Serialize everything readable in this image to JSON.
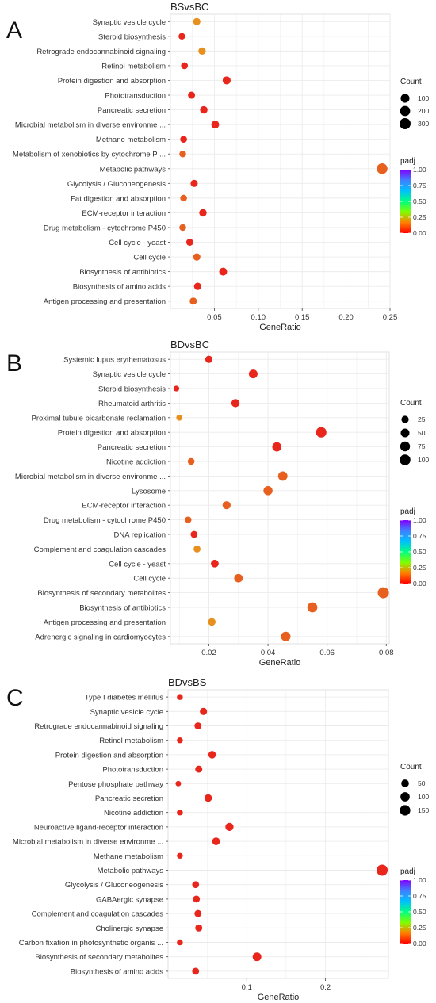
{
  "legend_titles": {
    "count": "Count",
    "padj": "padj"
  },
  "colorbar_ticks": [
    "1.00",
    "0.75",
    "0.50",
    "0.25",
    "0.00"
  ],
  "colors": {
    "gradient": [
      "#ff0000",
      "#ff8000",
      "#80ff00",
      "#00ff80",
      "#00c0ff",
      "#4080ff",
      "#8000ff"
    ],
    "point_red": "#e8261c",
    "point_orange": "#e7601f",
    "point_amber": "#e8901e",
    "panel_bg": "#ffffff",
    "grid": "#ebebeb"
  },
  "chart_data": [
    {
      "type": "scatter",
      "panel_label": "A",
      "title": "BSvsBC",
      "xlabel": "GeneRatio",
      "xlim": [
        0,
        0.25
      ],
      "xticks": [
        0.05,
        0.1,
        0.15,
        0.2,
        0.25
      ],
      "xtick_labels": [
        "0.05",
        "0.10",
        "0.15",
        "0.20",
        "0.25"
      ],
      "count_legend": {
        "values": [
          100,
          200,
          300
        ],
        "labels": [
          "100",
          "200",
          "300"
        ]
      },
      "categories": [
        "Synaptic vesicle cycle",
        "Steroid biosynthesis",
        "Retrograde endocannabinoid signaling",
        "Retinol metabolism",
        "Protein digestion and absorption",
        "Phototransduction",
        "Pancreatic secretion",
        "Microbial metabolism in diverse environme ...",
        "Methane metabolism",
        "Metabolism of xenobiotics by cytochrome P ...",
        "Metabolic pathways",
        "Glycolysis / Gluconeogenesis",
        "Fat digestion and absorption",
        "ECM-receptor interaction",
        "Drug metabolism - cytochrome P450",
        "Cell cycle - yeast",
        "Cell cycle",
        "Biosynthesis of antibiotics",
        "Biosynthesis of amino acids",
        "Antigen processing and presentation"
      ],
      "points": [
        {
          "x": 0.03,
          "count": 25,
          "padj": 0.1
        },
        {
          "x": 0.013,
          "count": 10,
          "padj": 0.02
        },
        {
          "x": 0.036,
          "count": 30,
          "padj": 0.1
        },
        {
          "x": 0.016,
          "count": 13,
          "padj": 0.02
        },
        {
          "x": 0.064,
          "count": 55,
          "padj": 0.02
        },
        {
          "x": 0.024,
          "count": 20,
          "padj": 0.02
        },
        {
          "x": 0.038,
          "count": 32,
          "padj": 0.02
        },
        {
          "x": 0.051,
          "count": 45,
          "padj": 0.02
        },
        {
          "x": 0.015,
          "count": 12,
          "padj": 0.02
        },
        {
          "x": 0.014,
          "count": 11,
          "padj": 0.08
        },
        {
          "x": 0.241,
          "count": 260,
          "padj": 0.08
        },
        {
          "x": 0.027,
          "count": 23,
          "padj": 0.02
        },
        {
          "x": 0.015,
          "count": 12,
          "padj": 0.05
        },
        {
          "x": 0.037,
          "count": 32,
          "padj": 0.02
        },
        {
          "x": 0.014,
          "count": 11,
          "padj": 0.05
        },
        {
          "x": 0.022,
          "count": 18,
          "padj": 0.02
        },
        {
          "x": 0.03,
          "count": 25,
          "padj": 0.05
        },
        {
          "x": 0.06,
          "count": 52,
          "padj": 0.02
        },
        {
          "x": 0.031,
          "count": 27,
          "padj": 0.02
        },
        {
          "x": 0.026,
          "count": 22,
          "padj": 0.05
        }
      ]
    },
    {
      "type": "scatter",
      "panel_label": "B",
      "title": "BDvsBC",
      "xlabel": "GeneRatio",
      "xlim": [
        0.007,
        0.081
      ],
      "xticks": [
        0.02,
        0.04,
        0.06,
        0.08
      ],
      "xtick_labels": [
        "0.02",
        "0.04",
        "0.06",
        "0.08"
      ],
      "count_legend": {
        "values": [
          25,
          50,
          75,
          100
        ],
        "labels": [
          "25",
          "50",
          "75",
          "100"
        ]
      },
      "categories": [
        "Systemic lupus erythematosus",
        "Synaptic vesicle cycle",
        "Steroid biosynthesis",
        "Rheumatoid arthritis",
        "Proximal tubule bicarbonate reclamation",
        "Protein digestion and absorption",
        "Pancreatic secretion",
        "Nicotine addiction",
        "Microbial metabolism in diverse environme ...",
        "Lysosome",
        "ECM-receptor interaction",
        "Drug metabolism - cytochrome P450",
        "DNA replication",
        "Complement and coagulation cascades",
        "Cell cycle - yeast",
        "Cell cycle",
        "Biosynthesis of secondary metabolites",
        "Biosynthesis of antibiotics",
        "Antigen processing and presentation",
        "Adrenergic signaling in cardiomyocytes"
      ],
      "points": [
        {
          "x": 0.02,
          "count": 25,
          "padj": 0.03
        },
        {
          "x": 0.035,
          "count": 50,
          "padj": 0.02
        },
        {
          "x": 0.009,
          "count": 8,
          "padj": 0.02
        },
        {
          "x": 0.029,
          "count": 40,
          "padj": 0.02
        },
        {
          "x": 0.01,
          "count": 10,
          "padj": 0.1
        },
        {
          "x": 0.058,
          "count": 90,
          "padj": 0.02
        },
        {
          "x": 0.043,
          "count": 60,
          "padj": 0.02
        },
        {
          "x": 0.014,
          "count": 18,
          "padj": 0.05
        },
        {
          "x": 0.045,
          "count": 65,
          "padj": 0.08
        },
        {
          "x": 0.04,
          "count": 58,
          "padj": 0.08
        },
        {
          "x": 0.026,
          "count": 38,
          "padj": 0.08
        },
        {
          "x": 0.013,
          "count": 16,
          "padj": 0.05
        },
        {
          "x": 0.015,
          "count": 20,
          "padj": 0.02
        },
        {
          "x": 0.016,
          "count": 22,
          "padj": 0.15
        },
        {
          "x": 0.022,
          "count": 32,
          "padj": 0.02
        },
        {
          "x": 0.03,
          "count": 45,
          "padj": 0.05
        },
        {
          "x": 0.079,
          "count": 110,
          "padj": 0.08
        },
        {
          "x": 0.055,
          "count": 80,
          "padj": 0.05
        },
        {
          "x": 0.021,
          "count": 30,
          "padj": 0.15
        },
        {
          "x": 0.046,
          "count": 68,
          "padj": 0.08
        }
      ]
    },
    {
      "type": "scatter",
      "panel_label": "C",
      "title": "BDvsBS",
      "xlabel": "GeneRatio",
      "xlim": [
        0.0,
        0.28
      ],
      "xticks": [
        0.1,
        0.2
      ],
      "xtick_labels": [
        "0.1",
        "0.2"
      ],
      "count_legend": {
        "values": [
          50,
          100,
          150
        ],
        "labels": [
          "50",
          "100",
          "150"
        ]
      },
      "categories": [
        "Type I diabetes mellitus",
        "Synaptic vesicle cycle",
        "Retrograde endocannabinoid signaling",
        "Retinol metabolism",
        "Protein digestion and absorption",
        "Phototransduction",
        "Pentose phosphate pathway",
        "Pancreatic secretion",
        "Nicotine addiction",
        "Neuroactive ligand-receptor interaction",
        "Microbial metabolism in diverse environme ...",
        "Methane metabolism",
        "Metabolic pathways",
        "Glycolysis / Gluconeogenesis",
        "GABAergic synapse",
        "Complement and coagulation cascades",
        "Cholinergic synapse",
        "Carbon fixation in photosynthetic organis ...",
        "Biosynthesis of secondary metabolites",
        "Biosynthesis of amino acids"
      ],
      "points": [
        {
          "x": 0.015,
          "count": 15,
          "padj": 0.02
        },
        {
          "x": 0.045,
          "count": 40,
          "padj": 0.02
        },
        {
          "x": 0.038,
          "count": 35,
          "padj": 0.02
        },
        {
          "x": 0.015,
          "count": 15,
          "padj": 0.02
        },
        {
          "x": 0.056,
          "count": 48,
          "padj": 0.02
        },
        {
          "x": 0.039,
          "count": 36,
          "padj": 0.02
        },
        {
          "x": 0.013,
          "count": 10,
          "padj": 0.02
        },
        {
          "x": 0.051,
          "count": 45,
          "padj": 0.02
        },
        {
          "x": 0.015,
          "count": 15,
          "padj": 0.02
        },
        {
          "x": 0.078,
          "count": 65,
          "padj": 0.02
        },
        {
          "x": 0.061,
          "count": 52,
          "padj": 0.02
        },
        {
          "x": 0.015,
          "count": 15,
          "padj": 0.02
        },
        {
          "x": 0.272,
          "count": 180,
          "padj": 0.02
        },
        {
          "x": 0.035,
          "count": 33,
          "padj": 0.02
        },
        {
          "x": 0.036,
          "count": 34,
          "padj": 0.02
        },
        {
          "x": 0.038,
          "count": 35,
          "padj": 0.02
        },
        {
          "x": 0.039,
          "count": 36,
          "padj": 0.02
        },
        {
          "x": 0.015,
          "count": 15,
          "padj": 0.02
        },
        {
          "x": 0.113,
          "count": 80,
          "padj": 0.02
        },
        {
          "x": 0.035,
          "count": 33,
          "padj": 0.02
        }
      ]
    }
  ]
}
